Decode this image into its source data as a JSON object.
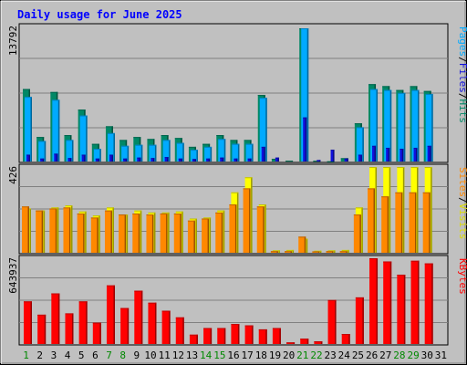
{
  "chart_data": {
    "type": "bar",
    "title": "Daily usage for June 2025",
    "days": [
      "1",
      "2",
      "3",
      "4",
      "5",
      "6",
      "7",
      "8",
      "9",
      "10",
      "11",
      "12",
      "13",
      "14",
      "15",
      "16",
      "17",
      "18",
      "19",
      "20",
      "21",
      "22",
      "23",
      "24",
      "25",
      "26",
      "27",
      "28",
      "29",
      "30",
      "31"
    ],
    "weekend_days": [
      "1",
      "7",
      "8",
      "14",
      "15",
      "21",
      "22",
      "28",
      "29"
    ],
    "panels": [
      {
        "id": "hits",
        "max_label": "13792",
        "max": 13792,
        "legend": [
          "Pages",
          "/",
          "Files",
          "/",
          "Hits"
        ],
        "legend_colors": [
          "#00aaff",
          "#000000",
          "#1010dd",
          "#000000",
          "#008866"
        ],
        "series": [
          {
            "name": "Hits",
            "color": "#008866",
            "values": [
              7400,
              2500,
              7100,
              2700,
              5300,
              1800,
              3600,
              2200,
              2500,
              2300,
              2700,
              2400,
              1500,
              1800,
              2700,
              2200,
              2200,
              6800,
              280,
              80,
              13600,
              70,
              20,
              340,
              3900,
              7900,
              7700,
              7300,
              7700,
              7200,
              0
            ]
          },
          {
            "name": "Files",
            "color": "#00aaff",
            "values": [
              6600,
              2100,
              6300,
              2200,
              4700,
              1300,
              2900,
              1600,
              1700,
              1700,
              2200,
              1900,
              1200,
              1500,
              2300,
              1800,
              1800,
              6500,
              0,
              0,
              13600,
              0,
              0,
              0,
              3500,
              7400,
              7300,
              7000,
              7300,
              6900,
              0
            ]
          },
          {
            "name": "Pages",
            "color": "#1010dd",
            "values": [
              700,
              300,
              800,
              350,
              700,
              300,
              700,
              300,
              400,
              350,
              450,
              300,
              250,
              300,
              400,
              300,
              300,
              1500,
              400,
              0,
              4500,
              150,
              1200,
              300,
              700,
              1600,
              1400,
              1300,
              1400,
              1600,
              0
            ]
          }
        ]
      },
      {
        "id": "visits",
        "max_label": "426",
        "max": 426,
        "legend": [
          "Sites",
          "/",
          "Visits"
        ],
        "legend_colors": [
          "#ff8800",
          "#000000",
          "#dddd00"
        ],
        "series": [
          {
            "name": "Visits",
            "color": "#ffff00",
            "values": [
              220,
              210,
              225,
              235,
              205,
              185,
              225,
              190,
              210,
              200,
              200,
              205,
              170,
              175,
              210,
              300,
              375,
              240,
              12,
              14,
              70,
              10,
              12,
              14,
              225,
              426,
              426,
              426,
              426,
              426,
              0
            ]
          },
          {
            "name": "Sites",
            "color": "#ff8800",
            "values": [
              230,
              210,
              220,
              225,
              195,
              175,
              210,
              190,
              195,
              190,
              195,
              195,
              160,
              170,
              200,
              240,
              320,
              230,
              8,
              8,
              80,
              7,
              8,
              8,
              190,
              320,
              280,
              300,
              300,
              300,
              0
            ]
          }
        ]
      },
      {
        "id": "kbytes",
        "max_label": "643937",
        "max": 643937,
        "legend": [
          "KBytes"
        ],
        "legend_colors": [
          "#ff0000"
        ],
        "series": [
          {
            "name": "KBytes",
            "color": "#ff0000",
            "values": [
              320000,
              220000,
              380000,
              230000,
              320000,
              160000,
              440000,
              270000,
              400000,
              310000,
              250000,
              200000,
              70000,
              120000,
              120000,
              150000,
              140000,
              110000,
              120000,
              12000,
              40000,
              20000,
              330000,
              75000,
              350000,
              643937,
              620000,
              520000,
              625000,
              605000,
              0
            ]
          }
        ]
      }
    ]
  }
}
